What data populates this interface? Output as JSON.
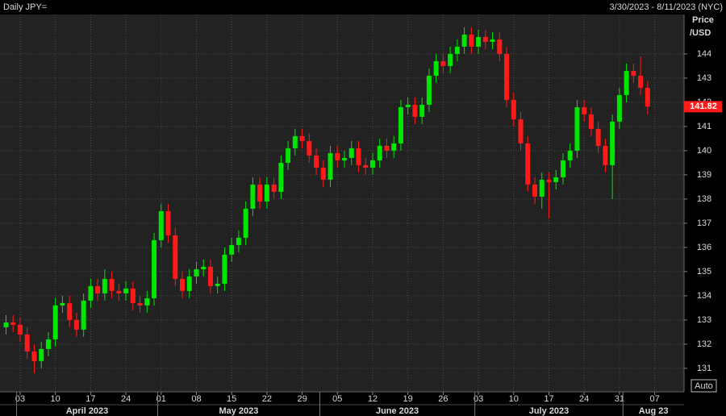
{
  "chart_data": {
    "type": "candlestick",
    "title": "Daily JPY=",
    "date_range": "3/30/2023 - 8/11/2023 (NYC)",
    "y_axis_label": [
      "Price",
      "/USD"
    ],
    "auto_button": "Auto",
    "up_color": "#00e600",
    "down_color": "#ff1a1a",
    "grid": true,
    "x": [
      "2023-03-30",
      "2023-03-31",
      "2023-04-03",
      "2023-04-04",
      "2023-04-05",
      "2023-04-06",
      "2023-04-07",
      "2023-04-10",
      "2023-04-11",
      "2023-04-12",
      "2023-04-13",
      "2023-04-14",
      "2023-04-17",
      "2023-04-18",
      "2023-04-19",
      "2023-04-20",
      "2023-04-21",
      "2023-04-24",
      "2023-04-25",
      "2023-04-26",
      "2023-04-27",
      "2023-04-28",
      "2023-05-01",
      "2023-05-02",
      "2023-05-03",
      "2023-05-04",
      "2023-05-05",
      "2023-05-08",
      "2023-05-09",
      "2023-05-10",
      "2023-05-11",
      "2023-05-12",
      "2023-05-15",
      "2023-05-16",
      "2023-05-17",
      "2023-05-18",
      "2023-05-19",
      "2023-05-22",
      "2023-05-23",
      "2023-05-24",
      "2023-05-25",
      "2023-05-26",
      "2023-05-29",
      "2023-05-30",
      "2023-05-31",
      "2023-06-01",
      "2023-06-02",
      "2023-06-05",
      "2023-06-06",
      "2023-06-07",
      "2023-06-08",
      "2023-06-09",
      "2023-06-12",
      "2023-06-13",
      "2023-06-14",
      "2023-06-15",
      "2023-06-16",
      "2023-06-19",
      "2023-06-20",
      "2023-06-21",
      "2023-06-22",
      "2023-06-23",
      "2023-06-26",
      "2023-06-27",
      "2023-06-28",
      "2023-06-29",
      "2023-06-30",
      "2023-07-03",
      "2023-07-04",
      "2023-07-05",
      "2023-07-06",
      "2023-07-07",
      "2023-07-10",
      "2023-07-11",
      "2023-07-12",
      "2023-07-13",
      "2023-07-14",
      "2023-07-17",
      "2023-07-18",
      "2023-07-19",
      "2023-07-20",
      "2023-07-21",
      "2023-07-24",
      "2023-07-25",
      "2023-07-26",
      "2023-07-27",
      "2023-07-28",
      "2023-07-31",
      "2023-08-01",
      "2023-08-02",
      "2023-08-03",
      "2023-08-04"
    ],
    "open": [
      132.7,
      132.9,
      132.8,
      132.4,
      131.7,
      131.3,
      131.8,
      132.2,
      133.6,
      133.7,
      133.0,
      132.6,
      133.8,
      134.4,
      134.1,
      134.7,
      134.2,
      134.1,
      134.3,
      133.7,
      133.6,
      133.9,
      136.3,
      137.5,
      136.5,
      134.7,
      134.2,
      134.8,
      135.1,
      135.2,
      134.4,
      134.5,
      135.7,
      136.1,
      136.4,
      137.6,
      138.6,
      137.9,
      138.6,
      138.3,
      139.5,
      140.1,
      140.6,
      140.4,
      139.8,
      139.3,
      138.8,
      139.9,
      139.6,
      139.7,
      140.1,
      139.4,
      139.3,
      139.6,
      140.2,
      140.0,
      140.3,
      141.8,
      141.9,
      141.4,
      141.9,
      143.1,
      143.7,
      143.5,
      144.0,
      144.3,
      144.8,
      144.3,
      144.7,
      144.5,
      144.6,
      144.0,
      142.1,
      141.3,
      140.3,
      138.6,
      138.1,
      138.8,
      138.7,
      138.9,
      139.6,
      140.0,
      141.8,
      141.5,
      140.9,
      140.2,
      139.4,
      141.2,
      142.3,
      143.3,
      143.1,
      142.6
    ],
    "high": [
      133.2,
      133.2,
      133.1,
      132.7,
      132.0,
      132.1,
      132.5,
      133.9,
      134.0,
      134.0,
      133.3,
      134.1,
      134.7,
      134.7,
      135.1,
      135.0,
      134.5,
      134.6,
      134.6,
      134.0,
      134.2,
      136.6,
      137.8,
      137.8,
      136.8,
      135.0,
      135.1,
      135.4,
      135.5,
      135.5,
      134.8,
      136.0,
      136.4,
      136.7,
      137.9,
      138.9,
      138.9,
      138.9,
      138.9,
      139.8,
      140.4,
      140.9,
      140.9,
      140.7,
      140.1,
      139.6,
      140.2,
      140.2,
      140.0,
      140.4,
      140.4,
      139.7,
      139.9,
      140.5,
      140.5,
      140.6,
      142.1,
      142.2,
      142.2,
      142.2,
      143.4,
      144.0,
      144.0,
      144.3,
      144.6,
      145.1,
      145.1,
      145.0,
      145.0,
      144.9,
      144.9,
      144.3,
      142.4,
      141.6,
      140.6,
      138.9,
      139.1,
      139.1,
      139.2,
      139.9,
      140.3,
      142.1,
      142.1,
      141.8,
      141.2,
      140.5,
      141.5,
      142.6,
      143.6,
      143.6,
      143.9,
      142.9
    ],
    "low": [
      132.4,
      132.5,
      132.1,
      131.4,
      130.8,
      131.0,
      131.5,
      131.9,
      133.3,
      132.7,
      132.3,
      132.3,
      133.5,
      133.8,
      133.8,
      133.9,
      133.8,
      133.8,
      133.4,
      133.3,
      133.3,
      133.6,
      136.0,
      136.2,
      134.4,
      133.9,
      133.9,
      134.5,
      134.8,
      134.1,
      134.1,
      134.2,
      135.4,
      135.8,
      136.1,
      137.3,
      137.6,
      137.6,
      138.0,
      138.0,
      139.2,
      139.8,
      140.1,
      139.5,
      139.0,
      138.5,
      138.5,
      139.3,
      139.3,
      139.4,
      139.1,
      139.0,
      139.0,
      139.3,
      139.7,
      139.7,
      140.0,
      141.5,
      141.1,
      141.1,
      141.6,
      142.8,
      143.2,
      143.2,
      143.7,
      144.0,
      144.0,
      144.0,
      144.2,
      144.2,
      143.7,
      141.8,
      141.0,
      140.0,
      138.3,
      137.8,
      137.6,
      137.2,
      138.4,
      138.6,
      139.3,
      139.7,
      141.2,
      140.6,
      139.9,
      139.1,
      138.0,
      140.9,
      142.0,
      142.8,
      142.3,
      141.5
    ],
    "close": [
      132.9,
      132.8,
      132.4,
      131.7,
      131.3,
      131.8,
      132.2,
      133.6,
      133.7,
      133.0,
      132.6,
      133.8,
      134.4,
      134.1,
      134.7,
      134.2,
      134.1,
      134.3,
      133.7,
      133.6,
      133.9,
      136.3,
      137.5,
      136.5,
      134.7,
      134.2,
      134.8,
      135.1,
      135.2,
      134.4,
      134.5,
      135.7,
      136.1,
      136.4,
      137.6,
      138.6,
      137.9,
      138.6,
      138.3,
      139.5,
      140.1,
      140.6,
      140.4,
      139.8,
      139.3,
      138.8,
      139.9,
      139.6,
      139.7,
      140.1,
      139.4,
      139.3,
      139.6,
      140.2,
      140.0,
      140.3,
      141.8,
      141.9,
      141.4,
      141.9,
      143.1,
      143.7,
      143.5,
      144.0,
      144.3,
      144.8,
      144.3,
      144.7,
      144.5,
      144.6,
      144.0,
      142.1,
      141.3,
      140.3,
      138.6,
      138.1,
      138.8,
      138.7,
      138.9,
      139.6,
      140.0,
      141.8,
      141.5,
      140.9,
      140.2,
      139.4,
      141.2,
      142.3,
      143.3,
      143.1,
      142.6,
      141.82
    ],
    "ylim": [
      130.03,
      145.63
    ],
    "yticks": [
      131,
      132,
      133,
      134,
      135,
      136,
      137,
      138,
      139,
      140,
      141,
      142,
      143,
      144
    ],
    "xticks": [
      {
        "value": "2023-04-03",
        "label": "03"
      },
      {
        "value": "2023-04-10",
        "label": "10"
      },
      {
        "value": "2023-04-17",
        "label": "17"
      },
      {
        "value": "2023-04-24",
        "label": "24"
      },
      {
        "value": "2023-05-01",
        "label": "01"
      },
      {
        "value": "2023-05-08",
        "label": "08"
      },
      {
        "value": "2023-05-15",
        "label": "15"
      },
      {
        "value": "2023-05-22",
        "label": "22"
      },
      {
        "value": "2023-05-29",
        "label": "29"
      },
      {
        "value": "2023-06-05",
        "label": "05"
      },
      {
        "value": "2023-06-12",
        "label": "12"
      },
      {
        "value": "2023-06-19",
        "label": "19"
      },
      {
        "value": "2023-06-26",
        "label": "26"
      },
      {
        "value": "2023-07-03",
        "label": "03"
      },
      {
        "value": "2023-07-10",
        "label": "10"
      },
      {
        "value": "2023-07-17",
        "label": "17"
      },
      {
        "value": "2023-07-24",
        "label": "24"
      },
      {
        "value": "2023-07-31",
        "label": "31"
      },
      {
        "value": "2023-08-07",
        "label": "07"
      }
    ],
    "months": [
      {
        "value": "2023-04-01",
        "label": "April 2023"
      },
      {
        "value": "2023-05-01",
        "label": "May 2023"
      },
      {
        "value": "2023-06-01",
        "label": "June 2023"
      },
      {
        "value": "2023-07-01",
        "label": "July 2023"
      },
      {
        "value": "2023-08-01",
        "label": "Aug 23"
      }
    ]
  }
}
